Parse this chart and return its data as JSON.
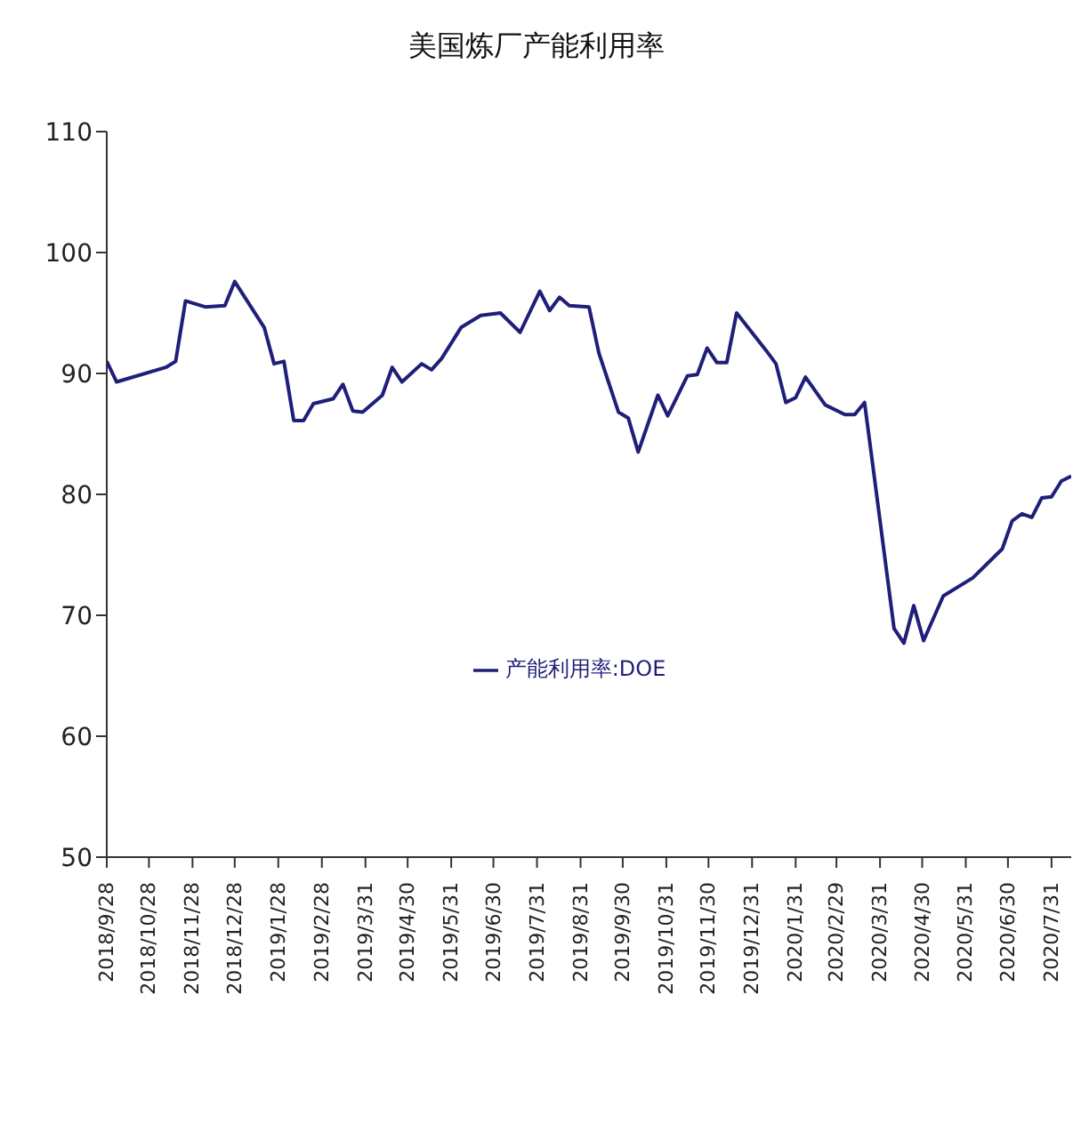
{
  "chart_data": {
    "type": "line",
    "title": "美国炼厂产能利用率",
    "x": [
      "2018-09-28",
      "2018-10-05",
      "2018-11-09",
      "2018-11-16",
      "2018-11-23",
      "2018-12-07",
      "2018-12-21",
      "2018-12-28",
      "2019-01-18",
      "2019-01-25",
      "2019-02-01",
      "2019-02-08",
      "2019-02-15",
      "2019-02-22",
      "2019-03-08",
      "2019-03-15",
      "2019-03-22",
      "2019-03-29",
      "2019-04-12",
      "2019-04-19",
      "2019-04-26",
      "2019-05-10",
      "2019-05-17",
      "2019-05-24",
      "2019-06-07",
      "2019-06-21",
      "2019-07-05",
      "2019-07-19",
      "2019-08-02",
      "2019-08-09",
      "2019-08-16",
      "2019-08-23",
      "2019-09-06",
      "2019-09-13",
      "2019-09-27",
      "2019-10-04",
      "2019-10-11",
      "2019-10-25",
      "2019-11-01",
      "2019-11-15",
      "2019-11-22",
      "2019-11-29",
      "2019-12-06",
      "2019-12-13",
      "2019-12-20",
      "2020-01-10",
      "2020-01-17",
      "2020-01-24",
      "2020-01-31",
      "2020-02-07",
      "2020-02-21",
      "2020-03-06",
      "2020-03-13",
      "2020-03-20",
      "2020-03-27",
      "2020-04-10",
      "2020-04-17",
      "2020-04-24",
      "2020-05-01",
      "2020-05-15",
      "2020-06-05",
      "2020-06-26",
      "2020-07-03",
      "2020-07-10",
      "2020-07-17",
      "2020-07-24",
      "2020-07-31",
      "2020-08-07",
      "2020-08-14"
    ],
    "series": [
      {
        "name": "产能利用率:DOE",
        "color": "#1f1f7a",
        "values": [
          91.0,
          89.3,
          90.5,
          91.0,
          96.0,
          95.5,
          95.6,
          97.6,
          93.8,
          90.8,
          91.0,
          86.1,
          86.1,
          87.5,
          87.9,
          89.1,
          86.9,
          86.8,
          88.2,
          90.5,
          89.3,
          90.8,
          90.3,
          91.2,
          93.8,
          94.8,
          95.0,
          93.4,
          96.8,
          95.2,
          96.3,
          95.6,
          95.5,
          91.7,
          86.8,
          86.3,
          83.5,
          88.2,
          86.5,
          89.8,
          89.9,
          92.1,
          90.9,
          90.9,
          95.0,
          91.9,
          90.8,
          87.6,
          88.0,
          89.7,
          87.4,
          86.6,
          86.6,
          87.6,
          81.4,
          68.9,
          67.7,
          70.8,
          67.9,
          71.6,
          73.1,
          75.5,
          77.8,
          78.4,
          78.1,
          79.7,
          79.8,
          81.1,
          81.5
        ]
      }
    ],
    "xlim": [
      "2018-09-28",
      "2020-08-14"
    ],
    "xticks": [
      {
        "value": "2018-09-28",
        "label": "2018/9/28"
      },
      {
        "value": "2018-10-28",
        "label": "2018/10/28"
      },
      {
        "value": "2018-11-28",
        "label": "2018/11/28"
      },
      {
        "value": "2018-12-28",
        "label": "2018/12/28"
      },
      {
        "value": "2019-01-28",
        "label": "2019/1/28"
      },
      {
        "value": "2019-02-28",
        "label": "2019/2/28"
      },
      {
        "value": "2019-03-31",
        "label": "2019/3/31"
      },
      {
        "value": "2019-04-30",
        "label": "2019/4/30"
      },
      {
        "value": "2019-05-31",
        "label": "2019/5/31"
      },
      {
        "value": "2019-06-30",
        "label": "2019/6/30"
      },
      {
        "value": "2019-07-31",
        "label": "2019/7/31"
      },
      {
        "value": "2019-08-31",
        "label": "2019/8/31"
      },
      {
        "value": "2019-09-30",
        "label": "2019/9/30"
      },
      {
        "value": "2019-10-31",
        "label": "2019/10/31"
      },
      {
        "value": "2019-11-30",
        "label": "2019/11/30"
      },
      {
        "value": "2019-12-31",
        "label": "2019/12/31"
      },
      {
        "value": "2020-01-31",
        "label": "2020/1/31"
      },
      {
        "value": "2020-02-29",
        "label": "2020/2/29"
      },
      {
        "value": "2020-03-31",
        "label": "2020/3/31"
      },
      {
        "value": "2020-04-30",
        "label": "2020/4/30"
      },
      {
        "value": "2020-05-31",
        "label": "2020/5/31"
      },
      {
        "value": "2020-06-30",
        "label": "2020/6/30"
      },
      {
        "value": "2020-07-31",
        "label": "2020/7/31"
      }
    ],
    "ylim": [
      50,
      110
    ],
    "yticks": [
      50,
      60,
      70,
      80,
      90,
      100,
      110
    ],
    "grid": false,
    "legend": "center",
    "marker": "none",
    "line_style": "solid"
  }
}
